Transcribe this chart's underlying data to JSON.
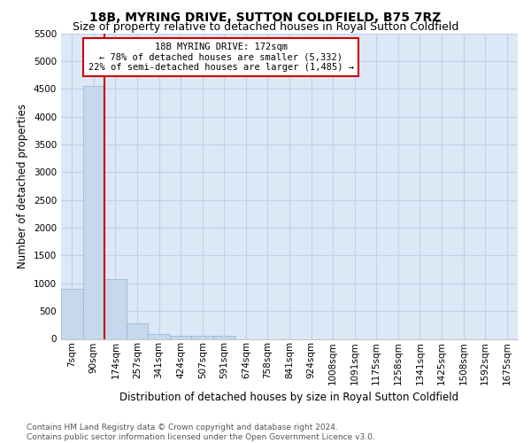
{
  "title": "18B, MYRING DRIVE, SUTTON COLDFIELD, B75 7RZ",
  "subtitle": "Size of property relative to detached houses in Royal Sutton Coldfield",
  "xlabel": "Distribution of detached houses by size in Royal Sutton Coldfield",
  "ylabel": "Number of detached properties",
  "categories": [
    "7sqm",
    "90sqm",
    "174sqm",
    "257sqm",
    "341sqm",
    "424sqm",
    "507sqm",
    "591sqm",
    "674sqm",
    "758sqm",
    "841sqm",
    "924sqm",
    "1008sqm",
    "1091sqm",
    "1175sqm",
    "1258sqm",
    "1341sqm",
    "1425sqm",
    "1508sqm",
    "1592sqm",
    "1675sqm"
  ],
  "values": [
    900,
    4550,
    1080,
    280,
    80,
    60,
    60,
    60,
    0,
    0,
    0,
    0,
    0,
    0,
    0,
    0,
    0,
    0,
    0,
    0,
    0
  ],
  "bar_color": "#c5d8ee",
  "bar_edge_color": "#8ab4d4",
  "vline_x_idx": 2,
  "vline_color": "#cc0000",
  "annotation_text": "18B MYRING DRIVE: 172sqm\n← 78% of detached houses are smaller (5,332)\n22% of semi-detached houses are larger (1,485) →",
  "annotation_box_color": "#ffffff",
  "annotation_box_edge_color": "#cc0000",
  "ylim": [
    0,
    5500
  ],
  "yticks": [
    0,
    500,
    1000,
    1500,
    2000,
    2500,
    3000,
    3500,
    4000,
    4500,
    5000,
    5500
  ],
  "bg_color": "#dce8f5",
  "grid_color": "#c0d0e8",
  "footer_line1": "Contains HM Land Registry data © Crown copyright and database right 2024.",
  "footer_line2": "Contains public sector information licensed under the Open Government Licence v3.0.",
  "title_fontsize": 10,
  "subtitle_fontsize": 9,
  "xlabel_fontsize": 8.5,
  "ylabel_fontsize": 8.5,
  "tick_fontsize": 7.5,
  "footer_fontsize": 6.5
}
